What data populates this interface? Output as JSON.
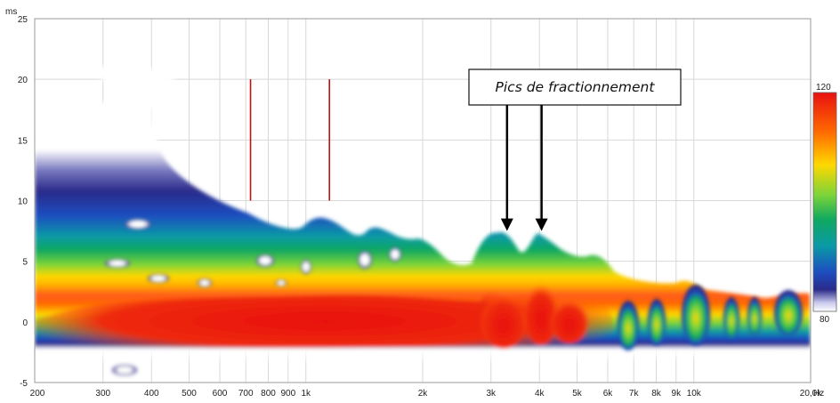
{
  "chart_data": {
    "type": "heatmap",
    "title": "",
    "xlabel": "",
    "ylabel": "",
    "x_unit": "Hz",
    "y_unit": "ms",
    "x_scale": "log",
    "xlim": [
      200,
      20000
    ],
    "ylim": [
      -5,
      25
    ],
    "grid": true,
    "x_ticks": [
      {
        "value": 200,
        "label": "200"
      },
      {
        "value": 300,
        "label": "300"
      },
      {
        "value": 400,
        "label": "400"
      },
      {
        "value": 500,
        "label": "500"
      },
      {
        "value": 600,
        "label": "600"
      },
      {
        "value": 700,
        "label": "700"
      },
      {
        "value": 800,
        "label": "800"
      },
      {
        "value": 900,
        "label": "900"
      },
      {
        "value": 1000,
        "label": "1k"
      },
      {
        "value": 2000,
        "label": "2k"
      },
      {
        "value": 3000,
        "label": "3k"
      },
      {
        "value": 4000,
        "label": "4k"
      },
      {
        "value": 5000,
        "label": "5k"
      },
      {
        "value": 6000,
        "label": "6k"
      },
      {
        "value": 7000,
        "label": "7k"
      },
      {
        "value": 8000,
        "label": "8k"
      },
      {
        "value": 9000,
        "label": "9k"
      },
      {
        "value": 10000,
        "label": "10k"
      },
      {
        "value": 20000,
        "label": "20,0k"
      }
    ],
    "y_ticks": [
      -5,
      0,
      5,
      10,
      15,
      20,
      25
    ],
    "color_scale": {
      "max_label": "120",
      "min_label": "80",
      "colors": [
        "#e81010",
        "#ff6a00",
        "#ffd800",
        "#7ad43a",
        "#10a860",
        "#0a9aa6",
        "#1d4ec0",
        "#2a2a8a",
        "#ffffff"
      ]
    },
    "markers": [
      {
        "x": 720,
        "y_from": 10,
        "y_to": 20,
        "color": "#c01010"
      },
      {
        "x": 1150,
        "y_from": 10,
        "y_to": 20,
        "color": "#c01010"
      }
    ],
    "annotation": {
      "text": "Pics de fractionnement",
      "arrows": [
        {
          "x": 3300,
          "y": 7.5
        },
        {
          "x": 4050,
          "y": 7.5
        }
      ]
    },
    "ridge_peaks": [
      {
        "x": 3300,
        "y": 7
      },
      {
        "x": 4000,
        "y": 6.7
      },
      {
        "x": 5000,
        "y": 5.5
      },
      {
        "x": 6000,
        "y": 5.5
      }
    ]
  }
}
